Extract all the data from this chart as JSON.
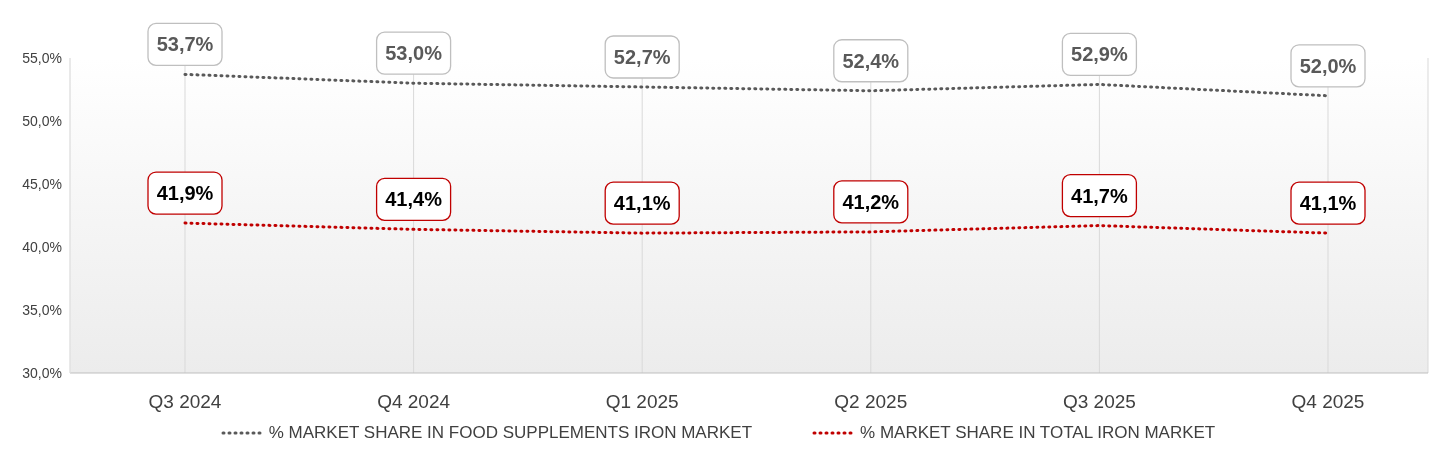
{
  "chart_data": {
    "type": "line",
    "categories": [
      "Q3 2024",
      "Q4 2024",
      "Q1 2025",
      "Q2 2025",
      "Q3 2025",
      "Q4 2025"
    ],
    "series": [
      {
        "name": "% MARKET SHARE IN FOOD SUPPLEMENTS IRON MARKET",
        "color": "#595959",
        "values": [
          53.7,
          53.0,
          52.7,
          52.4,
          52.9,
          52.0
        ],
        "value_labels": [
          "53,7%",
          "53,0%",
          "52,7%",
          "52,4%",
          "52,9%",
          "52,0%"
        ]
      },
      {
        "name": "% MARKET SHARE IN TOTAL IRON MARKET",
        "color": "#c00000",
        "values": [
          41.9,
          41.4,
          41.1,
          41.2,
          41.7,
          41.1
        ],
        "value_labels": [
          "41,9%",
          "41,4%",
          "41,1%",
          "41,2%",
          "41,7%",
          "41,1%"
        ]
      }
    ],
    "ylim": [
      30,
      55
    ],
    "yticks": [
      {
        "value": 30,
        "label": "30,0%"
      },
      {
        "value": 35,
        "label": "35,0%"
      },
      {
        "value": 40,
        "label": "40,0%"
      },
      {
        "value": 45,
        "label": "45,0%"
      },
      {
        "value": 50,
        "label": "50,0%"
      },
      {
        "value": 55,
        "label": "55,0%"
      }
    ],
    "grid": "x",
    "legend": "bottom",
    "line_style": "dotted"
  }
}
